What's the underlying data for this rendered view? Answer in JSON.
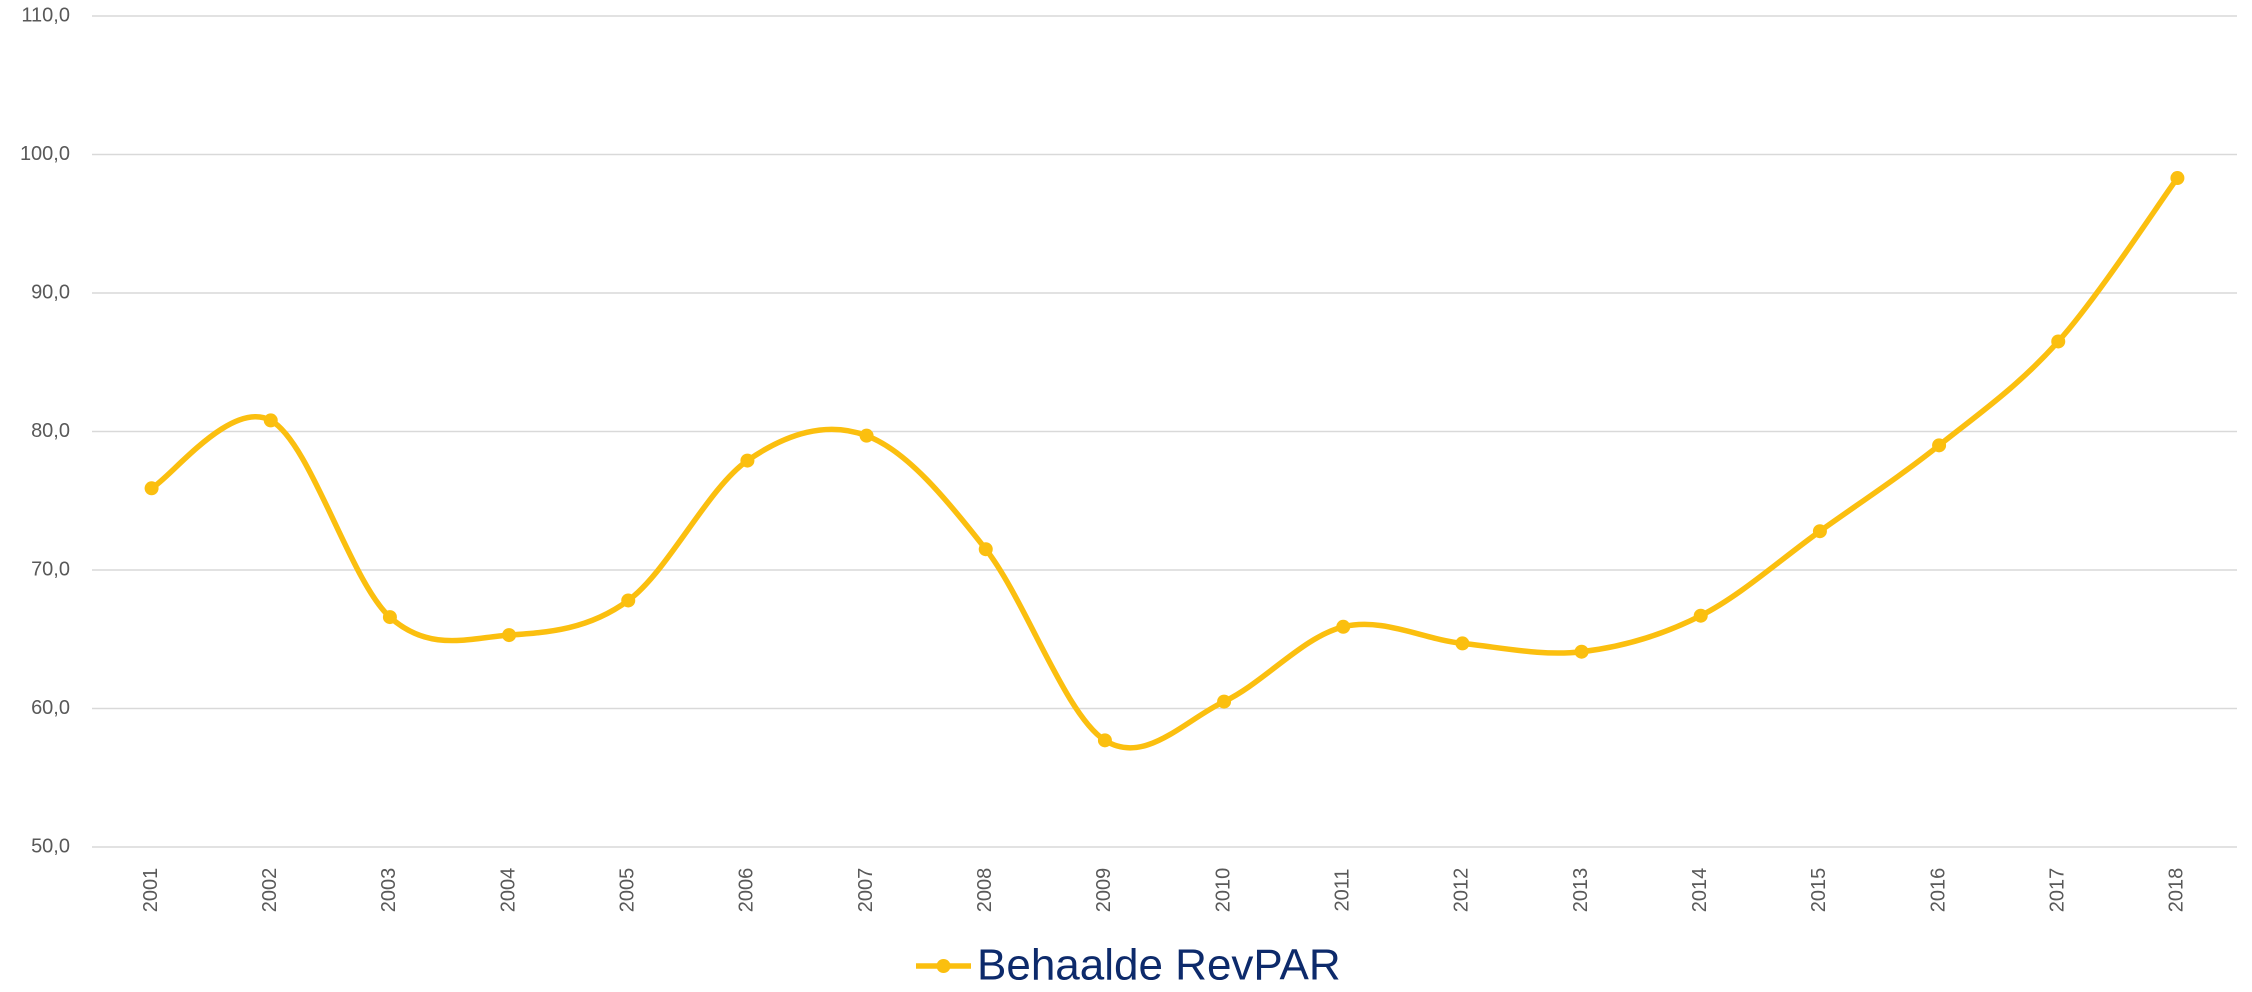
{
  "chart_data": {
    "type": "line",
    "categories": [
      "2001",
      "2002",
      "2003",
      "2004",
      "2005",
      "2006",
      "2007",
      "2008",
      "2009",
      "2010",
      "2011",
      "2012",
      "2013",
      "2014",
      "2015",
      "2016",
      "2017",
      "2018"
    ],
    "series": [
      {
        "name": "Behaalde RevPAR",
        "color": "#fbbf0f",
        "values": [
          75.9,
          80.8,
          66.6,
          65.3,
          67.8,
          77.9,
          79.7,
          71.5,
          57.7,
          60.5,
          65.9,
          64.7,
          64.1,
          66.7,
          72.8,
          79.0,
          86.5,
          98.3
        ]
      }
    ],
    "ylim": [
      50,
      110
    ],
    "yticks": [
      {
        "value": 50,
        "label": "50,0"
      },
      {
        "value": 60,
        "label": "60,0"
      },
      {
        "value": 70,
        "label": "70,0"
      },
      {
        "value": 80,
        "label": "80,0"
      },
      {
        "value": 90,
        "label": "90,0"
      },
      {
        "value": 100,
        "label": "100,0"
      },
      {
        "value": 110,
        "label": "110,0"
      }
    ],
    "grid": true,
    "smooth": true,
    "legend": "bottom"
  }
}
